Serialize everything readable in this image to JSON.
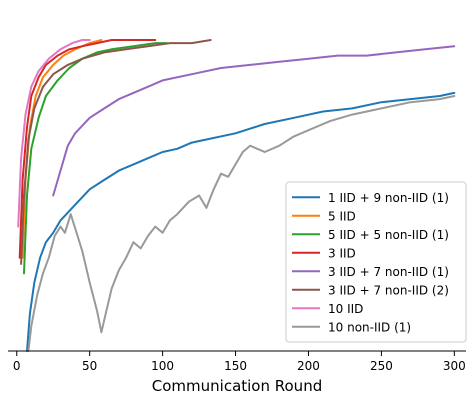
{
  "chart_data": {
    "type": "line",
    "xlabel": "Communication Round",
    "ylabel": "",
    "xlim": [
      -6,
      308
    ],
    "ylim": [
      0,
      1
    ],
    "xticks": [
      0,
      50,
      100,
      150,
      200,
      250,
      300
    ],
    "xtick_labels": [
      "0",
      "50",
      "100",
      "150",
      "200",
      "250",
      "300"
    ],
    "grid": false,
    "legend_position": "lower-right",
    "series": [
      {
        "name": "1 IID + 9 non-IID (1)",
        "color": "#1f77b4",
        "points": [
          [
            7,
            0.0
          ],
          [
            9,
            0.12
          ],
          [
            12,
            0.22
          ],
          [
            16,
            0.3
          ],
          [
            20,
            0.35
          ],
          [
            25,
            0.38
          ],
          [
            30,
            0.42
          ],
          [
            40,
            0.47
          ],
          [
            50,
            0.52
          ],
          [
            60,
            0.55
          ],
          [
            70,
            0.58
          ],
          [
            80,
            0.6
          ],
          [
            90,
            0.62
          ],
          [
            100,
            0.64
          ],
          [
            110,
            0.65
          ],
          [
            120,
            0.67
          ],
          [
            130,
            0.68
          ],
          [
            150,
            0.7
          ],
          [
            170,
            0.73
          ],
          [
            190,
            0.75
          ],
          [
            210,
            0.77
          ],
          [
            230,
            0.78
          ],
          [
            250,
            0.8
          ],
          [
            270,
            0.81
          ],
          [
            290,
            0.82
          ],
          [
            300,
            0.83
          ]
        ]
      },
      {
        "name": "5 IID",
        "color": "#ff7f0e",
        "points": [
          [
            4,
            0.3
          ],
          [
            6,
            0.55
          ],
          [
            9,
            0.72
          ],
          [
            13,
            0.82
          ],
          [
            18,
            0.88
          ],
          [
            25,
            0.92
          ],
          [
            32,
            0.95
          ],
          [
            40,
            0.97
          ],
          [
            50,
            0.99
          ],
          [
            58,
            1.0
          ]
        ]
      },
      {
        "name": "5 IID + 5 non-IID (1)",
        "color": "#2ca02c",
        "points": [
          [
            5,
            0.25
          ],
          [
            7,
            0.5
          ],
          [
            10,
            0.65
          ],
          [
            15,
            0.75
          ],
          [
            20,
            0.82
          ],
          [
            28,
            0.87
          ],
          [
            36,
            0.91
          ],
          [
            45,
            0.94
          ],
          [
            55,
            0.96
          ],
          [
            65,
            0.97
          ],
          [
            80,
            0.98
          ],
          [
            95,
            0.99
          ],
          [
            103,
            0.99
          ]
        ]
      },
      {
        "name": "3 IID",
        "color": "#d62728",
        "points": [
          [
            2,
            0.3
          ],
          [
            4,
            0.55
          ],
          [
            7,
            0.72
          ],
          [
            10,
            0.82
          ],
          [
            15,
            0.88
          ],
          [
            20,
            0.92
          ],
          [
            28,
            0.95
          ],
          [
            36,
            0.97
          ],
          [
            45,
            0.98
          ],
          [
            55,
            0.99
          ],
          [
            65,
            1.0
          ],
          [
            75,
            1.0
          ],
          [
            85,
            1.0
          ],
          [
            95,
            1.0
          ]
        ]
      },
      {
        "name": "3 IID + 7 non-IID (1)",
        "color": "#9467bd",
        "points": [
          [
            25,
            0.5
          ],
          [
            30,
            0.58
          ],
          [
            35,
            0.66
          ],
          [
            40,
            0.7
          ],
          [
            50,
            0.75
          ],
          [
            60,
            0.78
          ],
          [
            70,
            0.81
          ],
          [
            80,
            0.83
          ],
          [
            90,
            0.85
          ],
          [
            100,
            0.87
          ],
          [
            120,
            0.89
          ],
          [
            140,
            0.91
          ],
          [
            160,
            0.92
          ],
          [
            180,
            0.93
          ],
          [
            200,
            0.94
          ],
          [
            220,
            0.95
          ],
          [
            240,
            0.95
          ],
          [
            260,
            0.96
          ],
          [
            280,
            0.97
          ],
          [
            300,
            0.98
          ]
        ]
      },
      {
        "name": "3 IID + 7 non-IID (2)",
        "color": "#8c564b",
        "points": [
          [
            3,
            0.28
          ],
          [
            5,
            0.5
          ],
          [
            8,
            0.68
          ],
          [
            12,
            0.78
          ],
          [
            18,
            0.85
          ],
          [
            25,
            0.89
          ],
          [
            35,
            0.92
          ],
          [
            45,
            0.94
          ],
          [
            60,
            0.96
          ],
          [
            75,
            0.97
          ],
          [
            90,
            0.98
          ],
          [
            105,
            0.99
          ],
          [
            120,
            0.99
          ],
          [
            133,
            1.0
          ]
        ]
      },
      {
        "name": "10 IID",
        "color": "#e377c2",
        "points": [
          [
            1,
            0.4
          ],
          [
            3,
            0.62
          ],
          [
            6,
            0.76
          ],
          [
            10,
            0.85
          ],
          [
            15,
            0.9
          ],
          [
            22,
            0.94
          ],
          [
            30,
            0.97
          ],
          [
            38,
            0.99
          ],
          [
            45,
            1.0
          ],
          [
            50,
            1.0
          ]
        ]
      },
      {
        "name": "10 non-IID (1)",
        "color": "#999999",
        "points": [
          [
            8,
            0.0
          ],
          [
            10,
            0.08
          ],
          [
            14,
            0.18
          ],
          [
            18,
            0.25
          ],
          [
            22,
            0.3
          ],
          [
            26,
            0.37
          ],
          [
            30,
            0.4
          ],
          [
            33,
            0.38
          ],
          [
            37,
            0.44
          ],
          [
            41,
            0.38
          ],
          [
            45,
            0.32
          ],
          [
            50,
            0.22
          ],
          [
            55,
            0.13
          ],
          [
            58,
            0.06
          ],
          [
            61,
            0.12
          ],
          [
            65,
            0.2
          ],
          [
            70,
            0.26
          ],
          [
            75,
            0.3
          ],
          [
            80,
            0.35
          ],
          [
            85,
            0.33
          ],
          [
            90,
            0.37
          ],
          [
            95,
            0.4
          ],
          [
            100,
            0.38
          ],
          [
            105,
            0.42
          ],
          [
            110,
            0.44
          ],
          [
            118,
            0.48
          ],
          [
            125,
            0.5
          ],
          [
            130,
            0.46
          ],
          [
            135,
            0.52
          ],
          [
            140,
            0.57
          ],
          [
            145,
            0.56
          ],
          [
            150,
            0.6
          ],
          [
            155,
            0.64
          ],
          [
            160,
            0.66
          ],
          [
            170,
            0.64
          ],
          [
            180,
            0.66
          ],
          [
            190,
            0.69
          ],
          [
            200,
            0.71
          ],
          [
            215,
            0.74
          ],
          [
            230,
            0.76
          ],
          [
            250,
            0.78
          ],
          [
            270,
            0.8
          ],
          [
            290,
            0.81
          ],
          [
            300,
            0.82
          ]
        ]
      }
    ]
  }
}
